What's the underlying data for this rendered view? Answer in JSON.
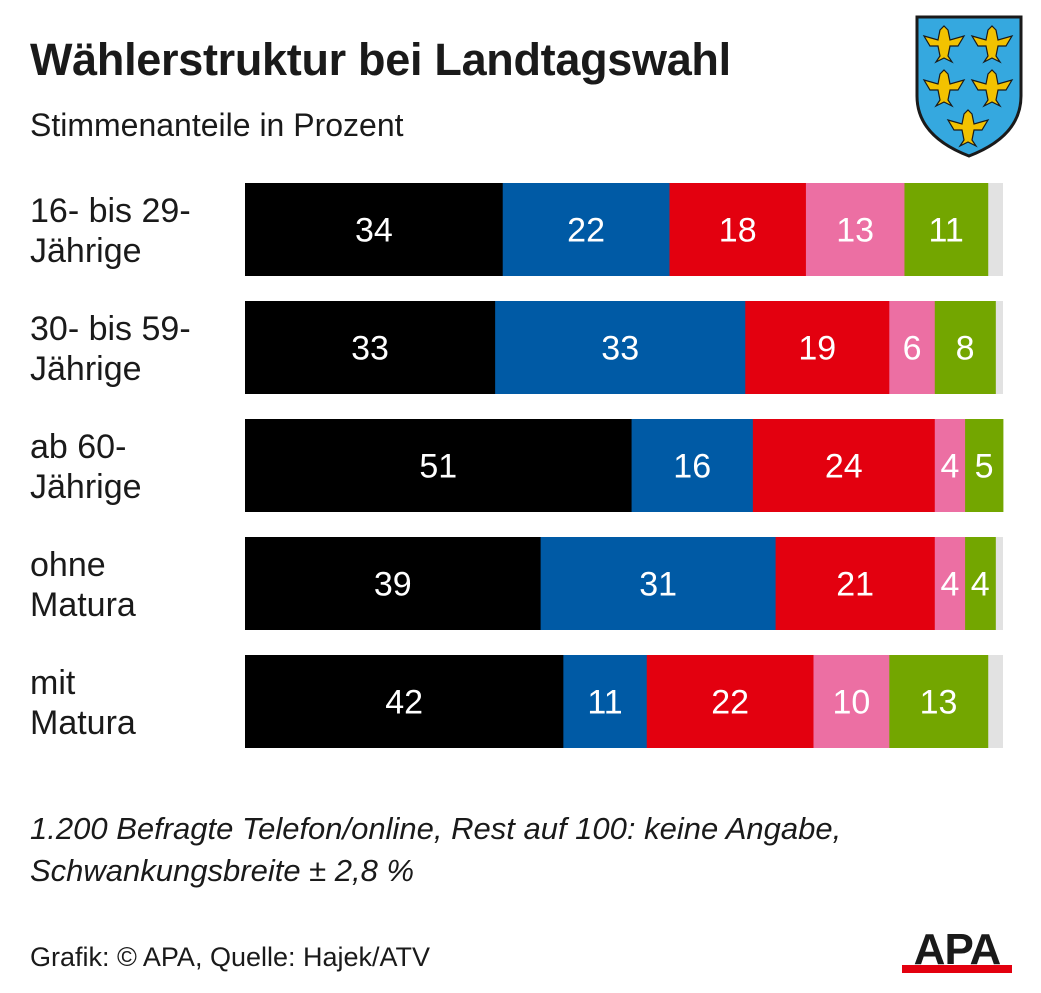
{
  "header": {
    "title": "Wählerstruktur bei Landtagswahl",
    "subtitle": "Stimmenanteile in Prozent"
  },
  "chart_data": {
    "type": "bar",
    "orientation": "horizontal",
    "stacked": true,
    "title": "Wählerstruktur bei Landtagswahl",
    "subtitle": "Stimmenanteile in Prozent",
    "xlim": [
      0,
      100
    ],
    "categories": [
      [
        "16- bis 29-",
        "Jährige"
      ],
      [
        "30- bis 59-",
        "Jährige"
      ],
      [
        "ab 60-",
        "Jährige"
      ],
      [
        "ohne",
        "Matura"
      ],
      [
        "mit",
        "Matura"
      ]
    ],
    "series": [
      {
        "color": "#000000",
        "values": [
          34,
          33,
          51,
          39,
          42
        ]
      },
      {
        "color": "#005aa5",
        "values": [
          22,
          33,
          16,
          31,
          11
        ]
      },
      {
        "color": "#e3000f",
        "values": [
          18,
          19,
          24,
          21,
          22
        ]
      },
      {
        "color": "#ec6fa3",
        "values": [
          13,
          6,
          4,
          4,
          10
        ]
      },
      {
        "color": "#73a600",
        "values": [
          11,
          8,
          5,
          4,
          13
        ]
      }
    ],
    "remainder_color": "#e2e2e2",
    "grid": false,
    "legend": "none"
  },
  "footer": {
    "note_line1": "1.200 Befragte Telefon/online, Rest auf 100: keine Angabe,",
    "note_line2": "Schwankungsbreite ± 2,8 %",
    "source": "Grafik: © APA, Quelle: Hajek/ATV",
    "logo_text": "APA",
    "logo_color": "#e3000f"
  }
}
